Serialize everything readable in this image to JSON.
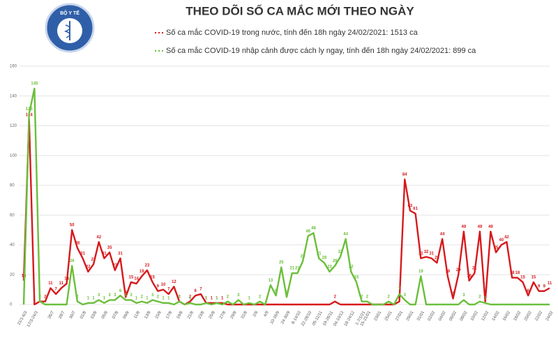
{
  "logo_text": "BỘ Y TẾ",
  "chart_data": {
    "type": "line",
    "title": "THEO DÕI SỐ CA MẮC MỚI THEO NGÀY",
    "categories": [
      "21/1-6/3",
      null,
      "17/3-24/3",
      null,
      null,
      "26/7",
      null,
      "28/7",
      null,
      "30/7",
      null,
      "01/8",
      null,
      "03/8",
      null,
      "05/8",
      null,
      "07/8",
      null,
      "09/8",
      null,
      "11/8",
      null,
      "13/8",
      null,
      "15/8",
      null,
      "17/8",
      null,
      "19/8",
      null,
      "21/8",
      null,
      "23/8",
      null,
      "25/8",
      null,
      "27/8",
      null,
      "29/8",
      null,
      "31/8",
      null,
      "2/9",
      null,
      "4/9",
      null,
      "10-16/9",
      null,
      "24-30/9",
      null,
      "8-14/10",
      null,
      "22-28/10",
      null,
      "05-11/11",
      null,
      "19-26/11",
      null,
      "04-10/12",
      null,
      "18-24/12",
      null,
      "1-7/1/21",
      "15-21/01",
      null,
      "23/01",
      null,
      "25/01",
      null,
      "27/01",
      null,
      "29/01",
      null,
      "31/01",
      null,
      "02/02",
      null,
      "04/02",
      null,
      "06/02",
      null,
      "08/02",
      null,
      "10/02",
      null,
      "12/02",
      null,
      "14/02",
      null,
      "16/02",
      null,
      "18/02",
      null,
      "20/02",
      null,
      "22/02",
      null,
      "24/02"
    ],
    "series": [
      {
        "name": "Số ca mắc COVID-19 trong nước, tính đến 18h ngày 24/02/2021: 1513 ca",
        "color": "#d7191c",
        "values": [
          16,
          124,
          0,
          2,
          2,
          11,
          7,
          11,
          14,
          50,
          38,
          31,
          22,
          27,
          42,
          31,
          35,
          23,
          31,
          5,
          15,
          14,
          19,
          23,
          15,
          9,
          10,
          7,
          12,
          2,
          0,
          2,
          6,
          7,
          1,
          1,
          1,
          1,
          0,
          0,
          0,
          0,
          0,
          0,
          0,
          0,
          0,
          0,
          0,
          0,
          0,
          0,
          0,
          0,
          0,
          0,
          0,
          0,
          2,
          0,
          0,
          0,
          0,
          0,
          0,
          0,
          0,
          0,
          0,
          0,
          2,
          84,
          63,
          61,
          31,
          32,
          31,
          28,
          44,
          19,
          4,
          20,
          49,
          16,
          21,
          49,
          2,
          49,
          35,
          40,
          42,
          18,
          18,
          15,
          6,
          15,
          9,
          9,
          11
        ]
      },
      {
        "name": "Số ca mắc COVID-19 nhập cảnh được cách ly ngay, tính đến 18h ngày 24/02/2021: 899 ca",
        "color": "#6abf3a",
        "values": [
          0,
          128,
          145,
          2,
          0,
          0,
          0,
          0,
          0,
          26,
          2,
          0,
          1,
          1,
          3,
          1,
          3,
          3,
          6,
          3,
          3,
          1,
          2,
          1,
          3,
          2,
          1,
          1,
          0,
          2,
          0,
          1,
          0,
          0,
          1,
          0,
          1,
          0,
          2,
          0,
          3,
          0,
          1,
          0,
          2,
          0,
          13,
          6,
          25,
          5,
          21,
          21,
          29,
          46,
          48,
          31,
          28,
          22,
          26,
          32,
          44,
          22,
          15,
          2,
          2,
          0,
          0,
          0,
          2,
          0,
          7,
          3,
          0,
          0,
          19,
          0,
          0,
          0,
          0,
          0,
          0,
          0,
          3,
          0,
          0,
          2,
          1,
          0,
          0,
          0,
          0,
          0,
          0,
          0,
          0,
          0,
          0,
          0,
          0
        ]
      }
    ],
    "ylim": [
      0,
      160
    ],
    "yticks": [
      0,
      20,
      40,
      60,
      80,
      100,
      120,
      140,
      160
    ],
    "grid": true
  }
}
